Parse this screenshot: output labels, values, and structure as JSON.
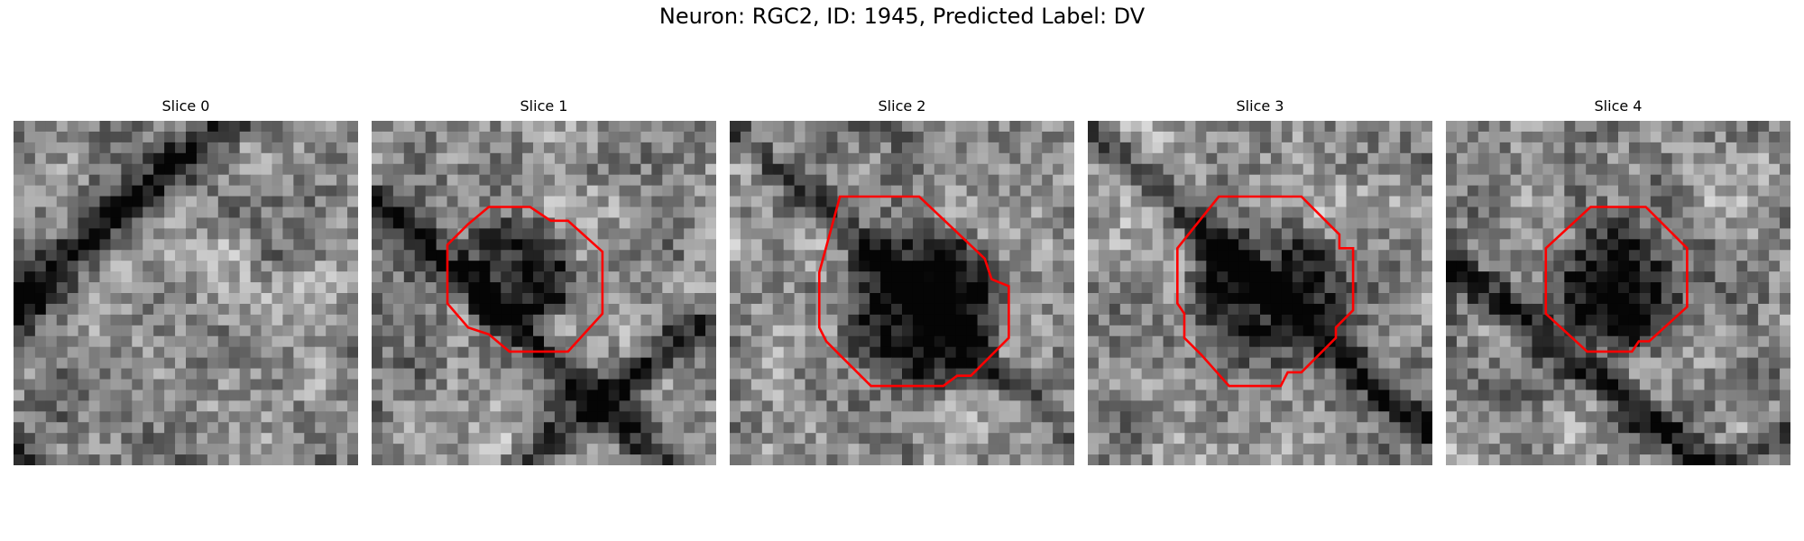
{
  "figure": {
    "title": "Neuron: RGC2, ID: 1945, Predicted Label: DV",
    "outline_color": "#ff0000"
  },
  "slices": [
    {
      "title": "Slice 0",
      "has_outline": false
    },
    {
      "title": "Slice 1",
      "has_outline": true
    },
    {
      "title": "Slice 2",
      "has_outline": true
    },
    {
      "title": "Slice 3",
      "has_outline": true
    },
    {
      "title": "Slice 4",
      "has_outline": true
    }
  ]
}
